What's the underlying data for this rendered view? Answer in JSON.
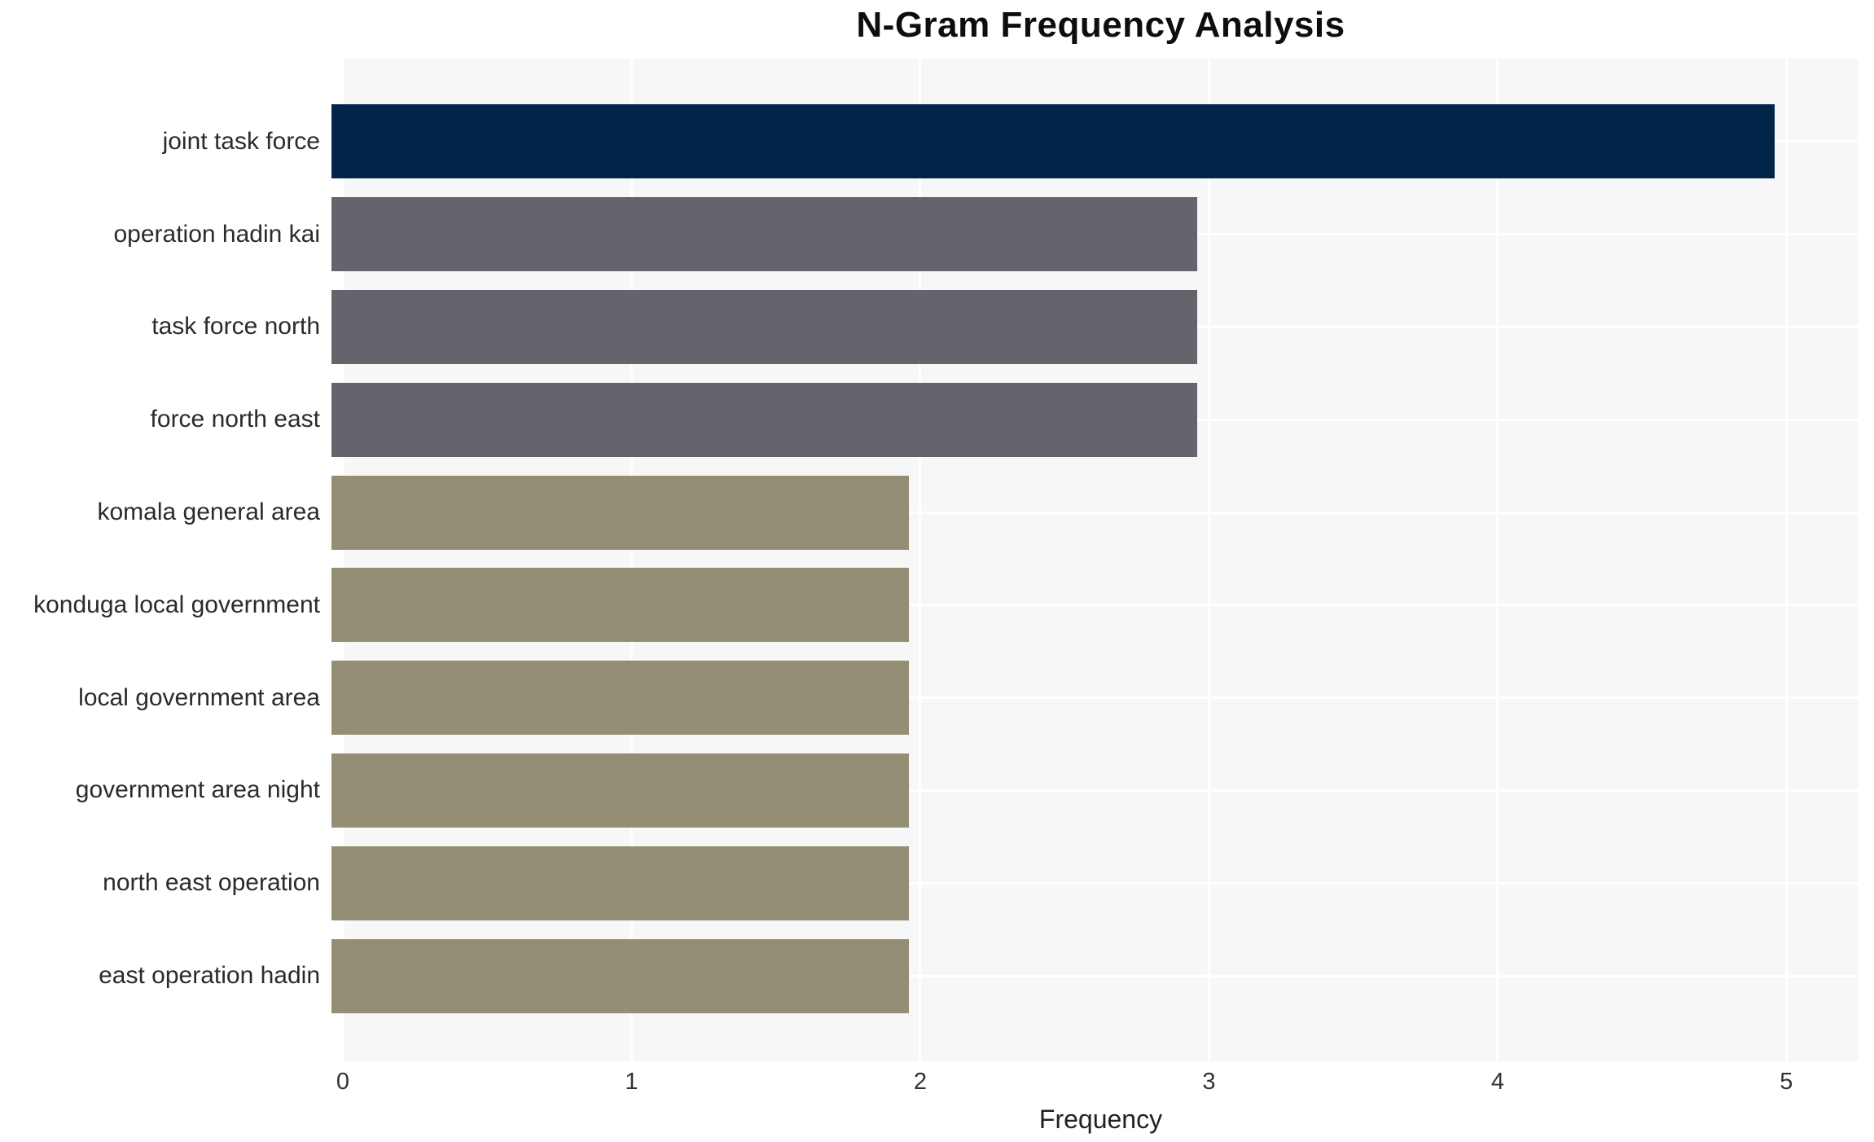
{
  "chart_data": {
    "type": "bar",
    "orientation": "horizontal",
    "title": "N-Gram Frequency Analysis",
    "xlabel": "Frequency",
    "ylabel": "",
    "categories": [
      "joint task force",
      "operation hadin kai",
      "task force north",
      "force north east",
      "komala general area",
      "konduga local government",
      "local government area",
      "government area night",
      "north east operation",
      "east operation hadin"
    ],
    "values": [
      5,
      3,
      3,
      3,
      2,
      2,
      2,
      2,
      2,
      2
    ],
    "bar_colors": [
      "#032449",
      "#64646c",
      "#64646c",
      "#64646c",
      "#938e74",
      "#938e74",
      "#938e74",
      "#938e74",
      "#938e74",
      "#938e74"
    ],
    "xticks": [
      "0",
      "1",
      "2",
      "3",
      "4",
      "5"
    ],
    "xlim": [
      0,
      5.25
    ],
    "grid": true,
    "legend": false,
    "plot_background": "#f7f7f8",
    "grid_color": "#ffffff",
    "page_background": "#ffffff",
    "title_color": "#0d0d0d",
    "label_color": "#2b2b2b",
    "tick_color": "#333333"
  }
}
